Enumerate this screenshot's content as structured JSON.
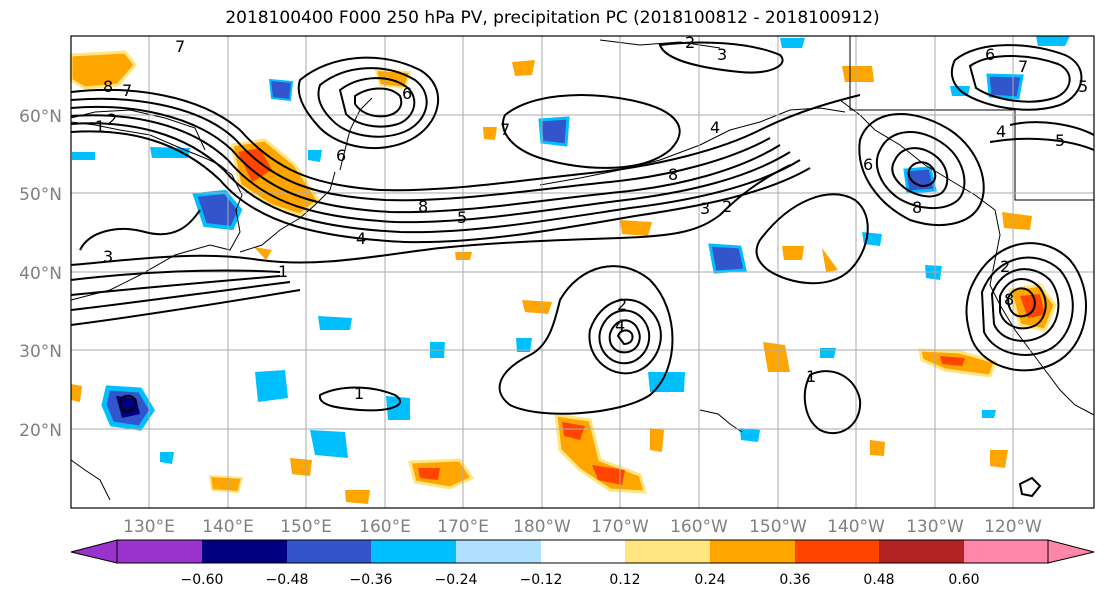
{
  "title": "2018100400 F000 250 hPa PV, precipitation PC (2018100812 - 2018100912)",
  "map": {
    "lon_labels": [
      "130°E",
      "140°E",
      "150°E",
      "160°E",
      "170°E",
      "180°W",
      "170°W",
      "160°W",
      "150°W",
      "140°W",
      "130°W",
      "120°W"
    ],
    "lat_labels": [
      "20°N",
      "30°N",
      "40°N",
      "50°N",
      "60°N"
    ],
    "contour_labels": [
      "1",
      "2",
      "3",
      "4",
      "5",
      "6",
      "7",
      "8"
    ]
  },
  "colorbar": {
    "tick_labels": [
      "−0.60",
      "−0.48",
      "−0.36",
      "−0.24",
      "−0.12",
      "0.12",
      "0.24",
      "0.36",
      "0.48",
      "0.60"
    ],
    "colors": [
      "#9933cc",
      "#000080",
      "#3355cc",
      "#00bfff",
      "#b0e0ff",
      "#ffffff",
      "#ffe680",
      "#ffa500",
      "#ff4500",
      "#b22222",
      "#ff88aa"
    ]
  }
}
